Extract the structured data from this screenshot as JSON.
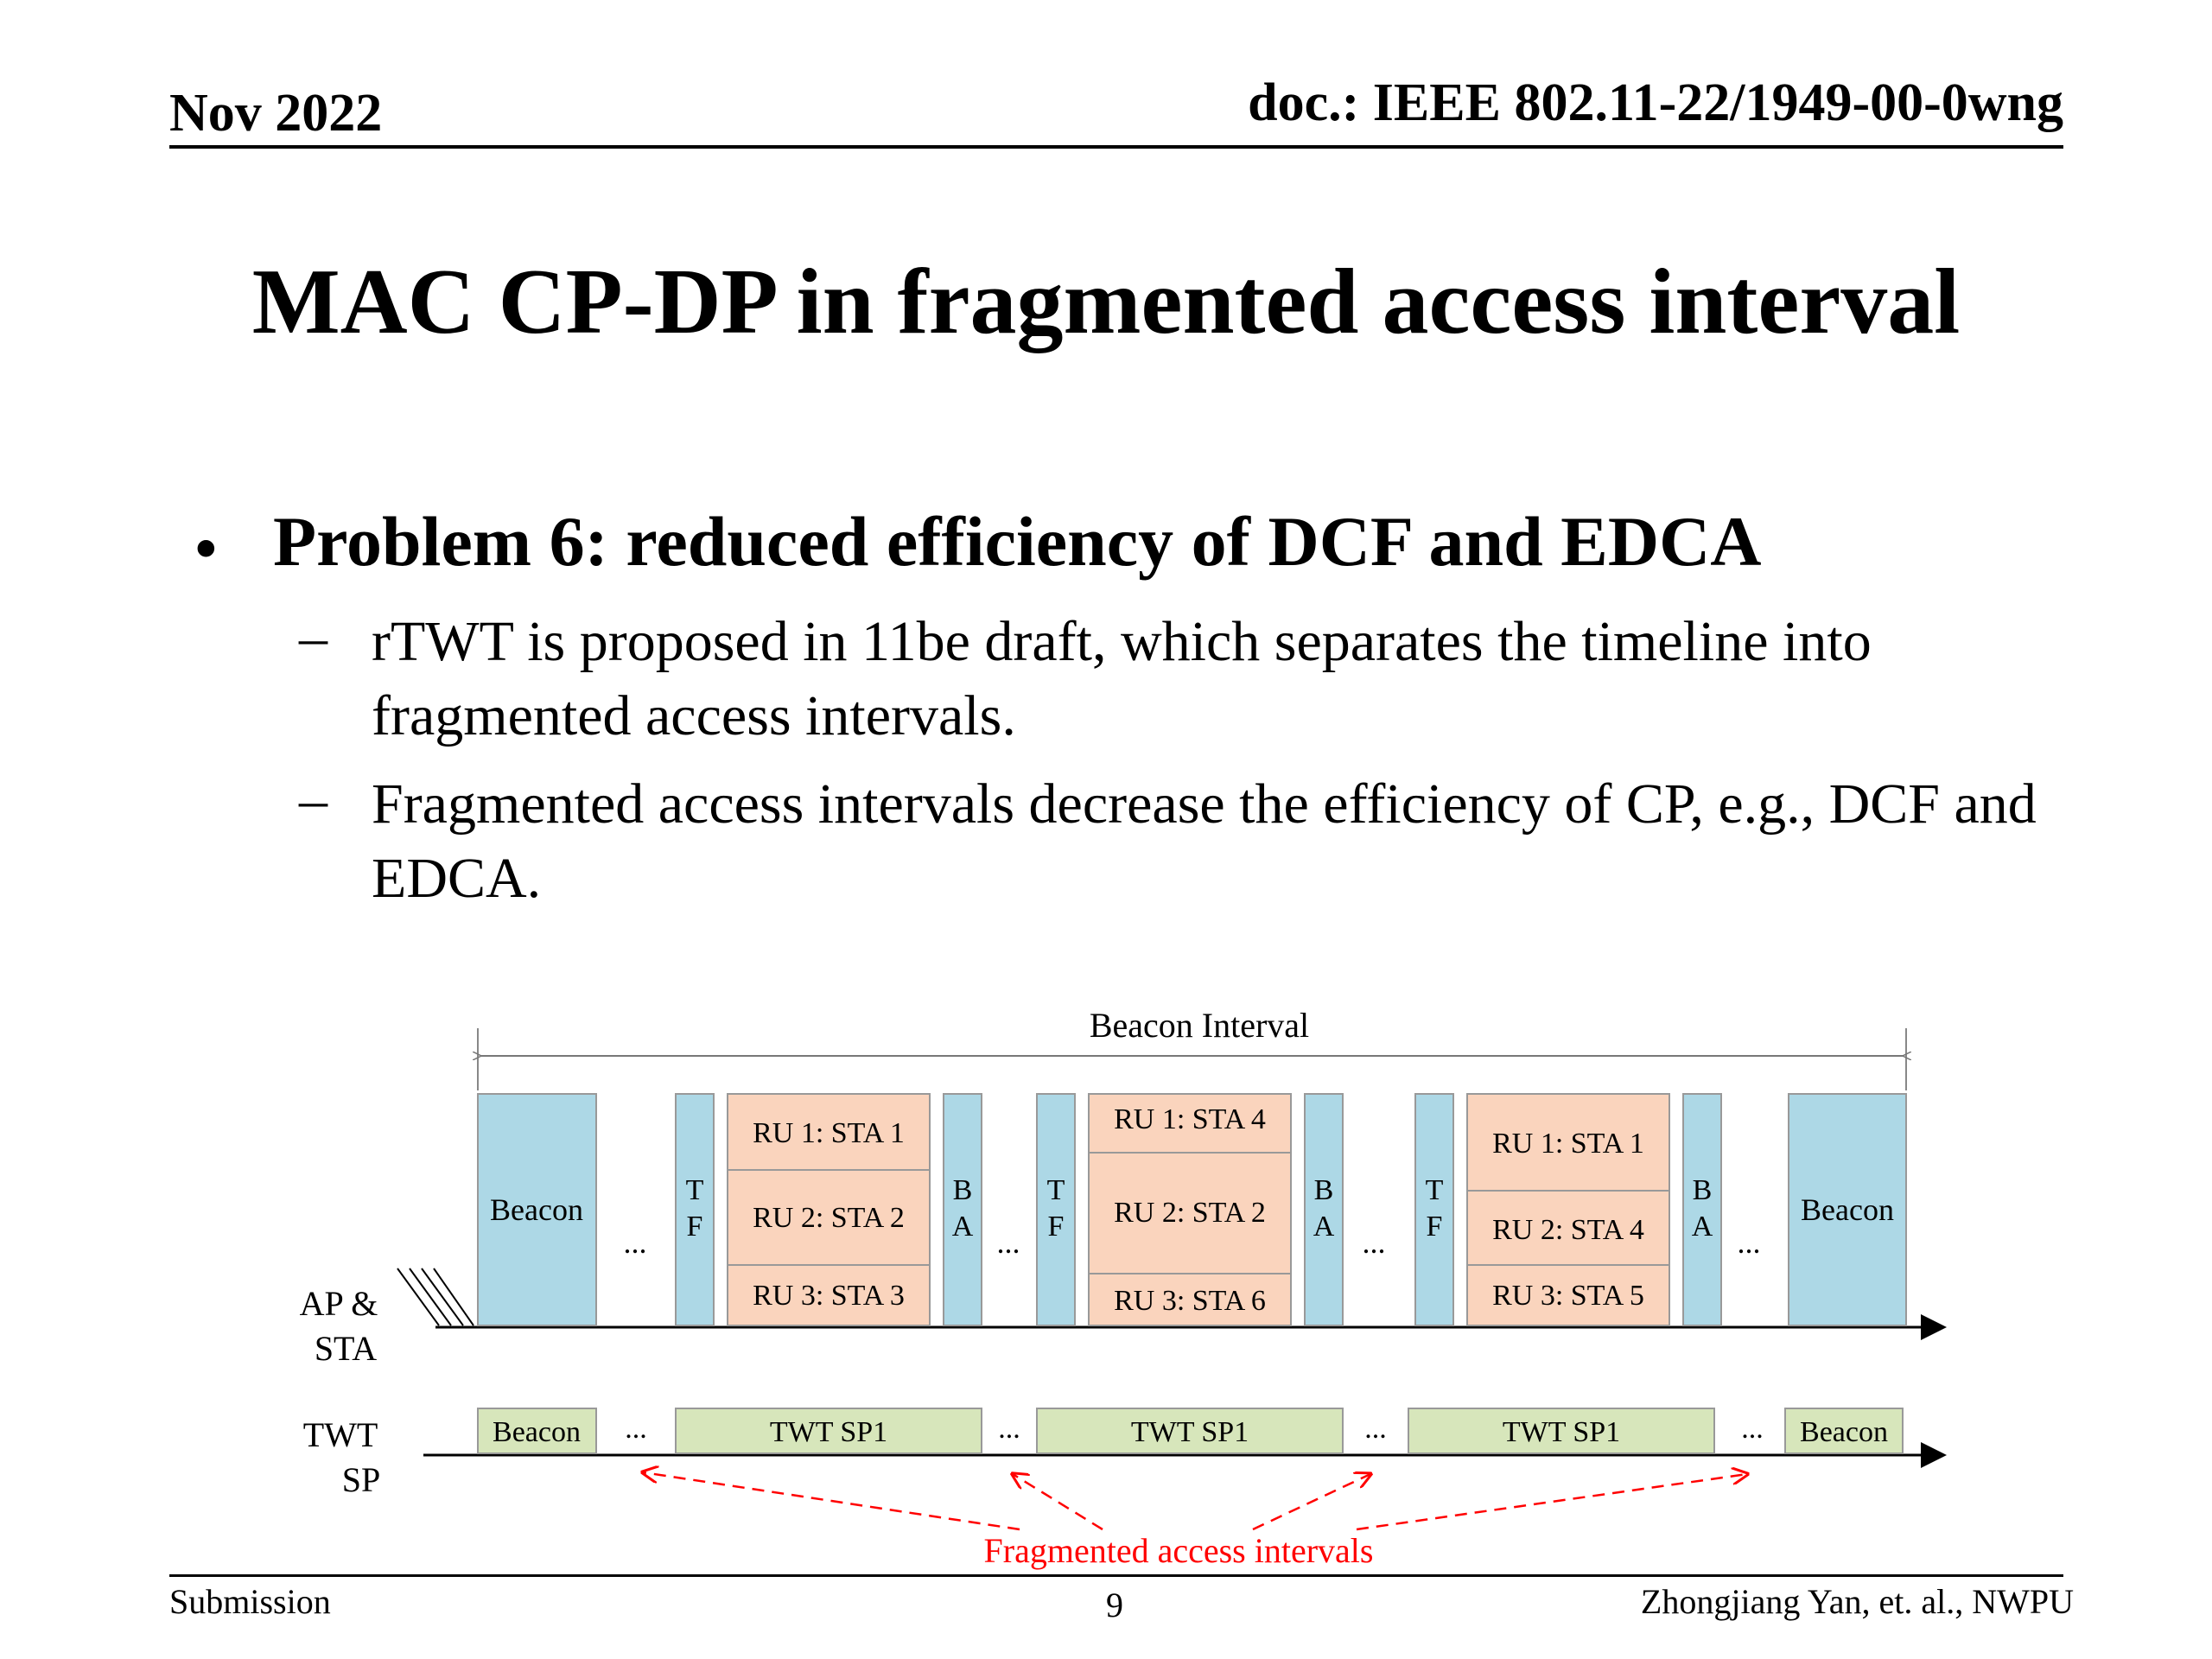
{
  "header": {
    "date": "Nov 2022",
    "doc_id": "doc.: IEEE 802.11-22/1949-00-0wng"
  },
  "title": "MAC CP-DP in fragmented access interval",
  "bullet": {
    "symbol": "•",
    "text": "Problem 6: reduced efficiency of DCF and EDCA",
    "subitems": [
      {
        "dash": "–",
        "text": "rTWT is proposed in 11be draft, which separates the timeline into fragmented access intervals."
      },
      {
        "dash": "–",
        "text": "Fragmented access intervals decrease the efficiency of CP, e.g., DCF and EDCA."
      }
    ]
  },
  "diagram": {
    "beacon_interval_label": "Beacon Interval",
    "row_label_ap_1": "AP &",
    "row_label_ap_2": "STA",
    "row_label_twt_1": "TWT",
    "row_label_twt_2": "SP",
    "beacon_label": "Beacon",
    "ellipsis": "...",
    "tf_1": "T",
    "tf_2": "F",
    "ba_1": "B",
    "ba_2": "A",
    "twt_sp_label": "TWT SP1",
    "group1": [
      "RU 1: STA 1",
      "RU 2: STA 2",
      "RU 3: STA 3"
    ],
    "group2": [
      "RU 1: STA 4",
      "RU 2: STA 2",
      "RU 3: STA 6"
    ],
    "group3": [
      "RU 1: STA 1",
      "RU 2: STA 4",
      "RU 3: STA 5"
    ],
    "annotation": "Fragmented access intervals",
    "colors": {
      "beacon_fill": "#add8e6",
      "ru_fill": "#fad4bd",
      "twt_fill": "#d7e6bb",
      "annotation": "#ff0000"
    }
  },
  "footer": {
    "left": "Submission",
    "page": "9",
    "right": "Zhongjiang Yan, et. al., NWPU"
  }
}
